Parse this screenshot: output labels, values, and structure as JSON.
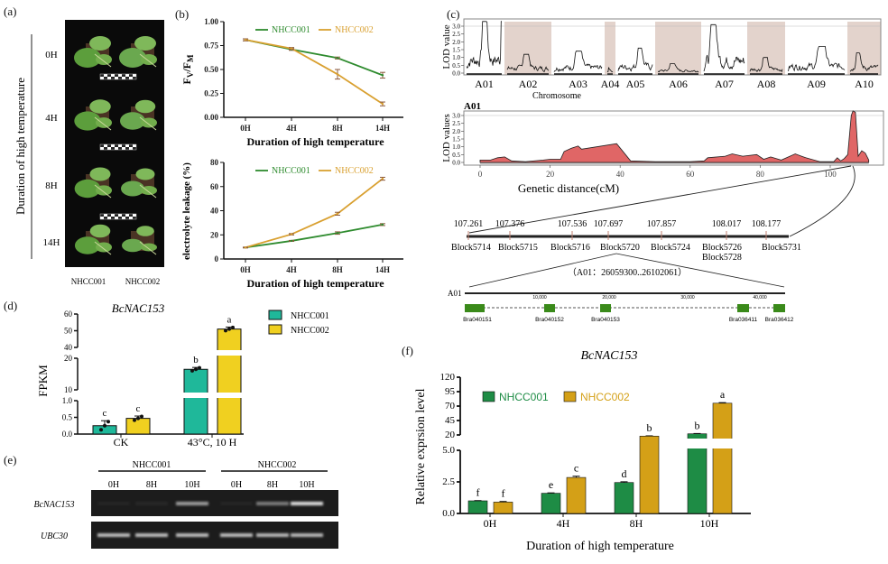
{
  "panel_labels": {
    "a": "(a)",
    "b": "(b)",
    "c": "(c)",
    "d": "(d)",
    "e": "(e)",
    "f": "(f)"
  },
  "panel_a": {
    "ylabel": "Duration of high temperature",
    "times": [
      "0H",
      "4H",
      "8H",
      "14H"
    ],
    "genotypes": [
      "NHCC001",
      "NHCC002"
    ]
  },
  "colors": {
    "b_nhcc001": "#2e8b2e",
    "b_nhcc002": "#d9a030",
    "d_nhcc001": "#1fb89a",
    "d_nhcc002": "#f0d020",
    "f_nhcc001": "#1e8c45",
    "f_nhcc002": "#d4a017",
    "lod_fill": "#e06666",
    "chrom_shade": "#e3d3cc",
    "gene_box": "#3a8a1a"
  },
  "chart_data": [
    {
      "type": "line",
      "ylabel": {
        "main1": "F",
        "sub1": "V",
        "main2": "/F",
        "sub2": "M"
      },
      "xlabel": "Duration of high temperature",
      "categories": [
        "0H",
        "4H",
        "8H",
        "14H"
      ],
      "ylim": [
        0,
        1
      ],
      "yticks": [
        "0.00",
        "0.25",
        "0.50",
        "0.75",
        "1.00"
      ],
      "legend": "top",
      "series": [
        {
          "name": "NHCC001",
          "values": [
            0.81,
            0.71,
            0.62,
            0.44
          ],
          "err": [
            0.01,
            0.01,
            0.01,
            0.03
          ]
        },
        {
          "name": "NHCC002",
          "values": [
            0.81,
            0.72,
            0.45,
            0.14
          ],
          "err": [
            0.01,
            0.01,
            0.05,
            0.02
          ]
        }
      ]
    },
    {
      "type": "line",
      "ylabel": "electrolyte leakage (%)",
      "xlabel": "Duration of high temperature",
      "categories": [
        "0H",
        "4H",
        "8H",
        "14H"
      ],
      "ylim": [
        0,
        80
      ],
      "yticks": [
        "0",
        "20",
        "40",
        "60",
        "80"
      ],
      "legend": "top",
      "series": [
        {
          "name": "NHCC001",
          "values": [
            9.5,
            15,
            21.5,
            28.5
          ],
          "err": [
            0.3,
            0.4,
            1.0,
            0.8
          ]
        },
        {
          "name": "NHCC002",
          "values": [
            9.5,
            20.5,
            37.5,
            66.5
          ],
          "err": [
            0.3,
            0.6,
            1.2,
            1.2
          ]
        }
      ]
    },
    {
      "type": "line",
      "ylabel": "LOD value",
      "xlabel": "Chromosome",
      "categories": [
        "A01",
        "A02",
        "A03",
        "A04",
        "A05",
        "A06",
        "A07",
        "A08",
        "A09",
        "A10"
      ],
      "peak_lod": [
        3.3,
        1.2,
        1.4,
        0.4,
        1.6,
        0.6,
        3.1,
        1.0,
        1.7,
        1.3
      ],
      "ylim": [
        0,
        3.4
      ],
      "yticks": [
        "0.0",
        "0.5",
        "1.0",
        "1.5",
        "2.0",
        "2.5",
        "3.0"
      ],
      "threshold": 3.0
    },
    {
      "type": "area",
      "title": "A01",
      "ylabel": "LOD values",
      "xlabel": "Genetic distance(cM)",
      "ylim": [
        0,
        3.4
      ],
      "yticks": [
        "0.0",
        "0.5",
        "1.0",
        "1.5",
        "2.0",
        "2.5",
        "3.0"
      ],
      "xticks": [
        "0",
        "20",
        "40",
        "60",
        "80",
        "100"
      ],
      "threshold": 3.0,
      "x": [
        0,
        3,
        5,
        7,
        9,
        13,
        18,
        20,
        23,
        24,
        26,
        28,
        29,
        39,
        43,
        50,
        60,
        64,
        65,
        70,
        72,
        75,
        79,
        81,
        83,
        86,
        90,
        93,
        97,
        101,
        102,
        103,
        104,
        105,
        106,
        106.5,
        107.2,
        108,
        109,
        110,
        111
      ],
      "y": [
        0.15,
        0.15,
        0.3,
        0.35,
        0.1,
        0.05,
        0.15,
        0.2,
        0.2,
        0.7,
        0.9,
        1.05,
        0.85,
        1.2,
        0.1,
        0.05,
        0.05,
        0.1,
        0.3,
        0.4,
        0.55,
        0.4,
        0.5,
        0.2,
        0.35,
        0.15,
        0.55,
        0.3,
        0.05,
        0.05,
        0.3,
        0.1,
        0.25,
        0.5,
        3.0,
        3.3,
        3.2,
        0.4,
        0.75,
        0.6,
        0.15
      ]
    },
    {
      "type": "bar",
      "title": "BcNAC153",
      "ylabel": "FPKM",
      "categories": [
        "CK",
        "43°C, 10 H"
      ],
      "y_segments": [
        [
          0,
          1
        ],
        [
          10,
          20
        ],
        [
          40,
          60
        ]
      ],
      "yticks": [
        [
          "0.0",
          "0.5",
          "1.0"
        ],
        [
          "10",
          "20"
        ],
        [
          "40",
          "50",
          "60"
        ]
      ],
      "legend": "right",
      "series": [
        {
          "name": "NHCC001",
          "values": [
            0.25,
            16.5
          ],
          "err": [
            0.15,
            0.6
          ],
          "letters": [
            "c",
            "b"
          ]
        },
        {
          "name": "NHCC002",
          "values": [
            0.47,
            51
          ],
          "err": [
            0.07,
            1.2
          ],
          "letters": [
            "c",
            "a"
          ]
        }
      ]
    },
    {
      "type": "bar",
      "title": "BcNAC153",
      "ylabel": "Relative exprsion level",
      "xlabel": "Duration of high temperature",
      "categories": [
        "0H",
        "4H",
        "8H",
        "10H"
      ],
      "y_segments": [
        [
          0,
          5
        ],
        [
          20,
          120
        ]
      ],
      "yticks": [
        [
          "0.0",
          "2.5",
          "5.0"
        ],
        [
          "20",
          "45",
          "70",
          "95",
          "120"
        ]
      ],
      "legend": "top-left",
      "series": [
        {
          "name": "NHCC001",
          "values": [
            1.0,
            1.6,
            2.45,
            22
          ],
          "err": [
            0.02,
            0.03,
            0.06,
            0.5
          ],
          "letters": [
            "f",
            "e",
            "d",
            "b"
          ]
        },
        {
          "name": "NHCC002",
          "values": [
            0.9,
            2.85,
            18,
            75
          ],
          "err": [
            0.05,
            0.1,
            0.5,
            1.0
          ],
          "letters": [
            "f",
            "c",
            "b",
            "a"
          ]
        }
      ]
    }
  ],
  "panel_c_detail": {
    "blocks": [
      {
        "pos": "107.261",
        "names": [
          "Block5714"
        ]
      },
      {
        "pos": "107.376",
        "names": [
          "Block5715"
        ]
      },
      {
        "pos": "107.536",
        "names": [
          "Block5716"
        ]
      },
      {
        "pos": "107.697",
        "names": [
          "Block5720"
        ]
      },
      {
        "pos": "107.857",
        "names": [
          "Block5724"
        ]
      },
      {
        "pos": "108.017",
        "names": [
          "Block5726",
          "Block5728"
        ]
      },
      {
        "pos": "108.177",
        "names": [
          "Block5731"
        ]
      }
    ],
    "region": "（A01：26059300..26102061）",
    "chrom": "A01",
    "scale_ticks": [
      "10,000",
      "20,000",
      "30,000",
      "40,000"
    ],
    "genes": [
      "Bra040151",
      "Bra040152",
      "Bra040153",
      "Bra036411",
      "Bra036412"
    ]
  },
  "panel_e": {
    "groups": [
      "NHCC001",
      "NHCC002"
    ],
    "lanes": [
      "0H",
      "8H",
      "10H",
      "0H",
      "8H",
      "10H"
    ],
    "genes": [
      {
        "name": "BcNAC153",
        "band_intensity": [
          0.04,
          0.05,
          0.6,
          0.04,
          0.45,
          0.9
        ]
      },
      {
        "name": "UBC30",
        "band_intensity": [
          0.75,
          0.75,
          0.75,
          0.75,
          0.72,
          0.72
        ]
      }
    ]
  }
}
